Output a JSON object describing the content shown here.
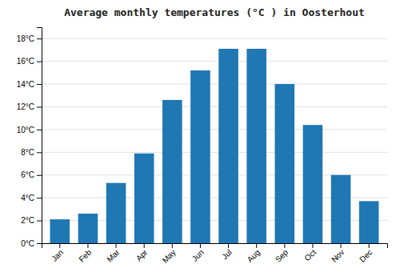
{
  "chart_data": {
    "type": "bar",
    "title": "Average monthly temperatures (°C ) in Oosterhout",
    "categories": [
      "Jan",
      "Feb",
      "Mar",
      "Apr",
      "May",
      "Jun",
      "Jul",
      "Aug",
      "Sep",
      "Oct",
      "Nov",
      "Dec"
    ],
    "values": [
      2.1,
      2.6,
      5.3,
      7.9,
      12.6,
      15.2,
      17.1,
      17.1,
      14.0,
      10.4,
      6.0,
      3.7
    ],
    "ylim": [
      0,
      19
    ],
    "yticks": [
      {
        "value": 0,
        "label": "0°C"
      },
      {
        "value": 2,
        "label": "2°C"
      },
      {
        "value": 4,
        "label": "4°C"
      },
      {
        "value": 6,
        "label": "6°C"
      },
      {
        "value": 8,
        "label": "8°C"
      },
      {
        "value": 10,
        "label": "10°C"
      },
      {
        "value": 12,
        "label": "12°C"
      },
      {
        "value": 14,
        "label": "14°C"
      },
      {
        "value": 16,
        "label": "16°C"
      },
      {
        "value": 18,
        "label": "18°C"
      }
    ],
    "grid": true
  }
}
